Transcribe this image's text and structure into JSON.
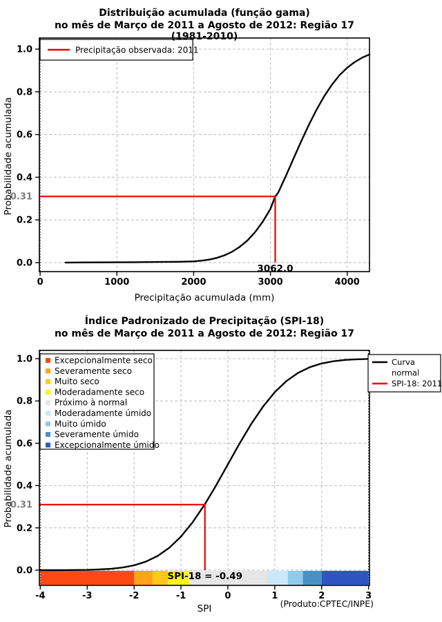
{
  "figure": {
    "background": "#FFFFFF",
    "footer": "(Produto:CPTEC/INPE)"
  },
  "chart_data": [
    {
      "type": "line",
      "title": "Distribuição acumulada (função gama)",
      "subtitle": "no mês de Março de 2011 a Agosto de 2012: Região 17 (1981-2010)",
      "xlabel": "Precipitação acumulada (mm)",
      "ylabel": "Probabilidade acumulada",
      "xlim": [
        0,
        4300
      ],
      "ylim": [
        0.0,
        1.0
      ],
      "grid": {
        "on": true,
        "color": "#C6C6C6"
      },
      "xticks": {
        "values": [
          0,
          1000,
          2000,
          3000,
          4000
        ],
        "labels": [
          "0",
          "1000",
          "2000",
          "3000",
          "4000"
        ]
      },
      "yticks": {
        "values": [
          0.0,
          0.2,
          0.4,
          0.6,
          0.8,
          1.0
        ],
        "labels": [
          "0.0",
          "0.2",
          "0.4",
          "0.6",
          "0.8",
          "1.0"
        ]
      },
      "special_ytick": {
        "value": 0.31,
        "label": "0.31",
        "color": "#7D7D7D"
      },
      "edge_gridlines_x": [
        0
      ],
      "legend": {
        "position": "top-left",
        "items": [
          {
            "label": "Precipitação observada: 2011",
            "color": "#EE0000",
            "marker": "line"
          }
        ]
      },
      "annotation": {
        "x": 3062,
        "y": 0.31,
        "label": "3062.0",
        "color": "#EE0000"
      },
      "series": [
        {
          "color": "#000000",
          "points": [
            [
              330,
              0.0005
            ],
            [
              600,
              0.001
            ],
            [
              900,
              0.0015
            ],
            [
              1200,
              0.002
            ],
            [
              1500,
              0.003
            ],
            [
              1800,
              0.004
            ],
            [
              2000,
              0.006
            ],
            [
              2100,
              0.009
            ],
            [
              2200,
              0.014
            ],
            [
              2300,
              0.022
            ],
            [
              2400,
              0.034
            ],
            [
              2500,
              0.051
            ],
            [
              2600,
              0.074
            ],
            [
              2700,
              0.104
            ],
            [
              2800,
              0.143
            ],
            [
              2900,
              0.192
            ],
            [
              3000,
              0.252
            ],
            [
              3062,
              0.31
            ],
            [
              3100,
              0.327
            ],
            [
              3200,
              0.405
            ],
            [
              3300,
              0.487
            ],
            [
              3400,
              0.568
            ],
            [
              3500,
              0.645
            ],
            [
              3600,
              0.716
            ],
            [
              3700,
              0.779
            ],
            [
              3800,
              0.833
            ],
            [
              3900,
              0.878
            ],
            [
              4000,
              0.913
            ],
            [
              4100,
              0.94
            ],
            [
              4200,
              0.961
            ],
            [
              4290,
              0.975
            ]
          ]
        }
      ]
    },
    {
      "type": "line",
      "title": "Índice Padronizado de Precipitação (SPI-18)",
      "subtitle": "no mês de Março de 2011 a Agosto de 2012: Região 17",
      "xlabel": "SPI",
      "ylabel": "Probabilidade acumulada",
      "xlim": [
        -4,
        3
      ],
      "ylim": [
        0.0,
        1.0
      ],
      "grid": {
        "on": true,
        "color": "#C6C6C6"
      },
      "xticks": {
        "values": [
          -4,
          -3,
          -2,
          -1,
          0,
          1,
          2,
          3
        ],
        "labels": [
          "-4",
          "-3",
          "-2",
          "-1",
          "0",
          "1",
          "2",
          "3"
        ]
      },
      "yticks": {
        "values": [
          0.0,
          0.2,
          0.4,
          0.6,
          0.8,
          1.0
        ],
        "labels": [
          "0.0",
          "0.2",
          "0.4",
          "0.6",
          "0.8",
          "1.0"
        ]
      },
      "special_ytick": {
        "value": 0.31,
        "label": "0.31",
        "color": "#7D7D7D"
      },
      "edge_gridlines_x": [
        -4,
        3
      ],
      "legend_categories": {
        "items": [
          {
            "label": "Excepcionalmente seco",
            "color": "#FB4A14"
          },
          {
            "label": "Severamente seco",
            "color": "#FFA318"
          },
          {
            "label": "Muito seco",
            "color": "#FFC813"
          },
          {
            "label": "Moderadamente seco",
            "color": "#FFF315"
          },
          {
            "label": "Próximo à normal",
            "color": "#E6E6E6"
          },
          {
            "label": "Moderadamente úmido",
            "color": "#C9E9F8"
          },
          {
            "label": "Muito úmido",
            "color": "#8FCBEE"
          },
          {
            "label": "Severamente úmido",
            "color": "#4791C8"
          },
          {
            "label": "Excepcionalmente úmido",
            "color": "#2D55C4"
          }
        ]
      },
      "legend_lines": {
        "items": [
          {
            "label_lines": [
              "Curva",
              "normal"
            ],
            "color": "#000000"
          },
          {
            "label_lines": [
              "SPI-18: 2011"
            ],
            "color": "#EE0000"
          }
        ]
      },
      "colorbar": {
        "segments": [
          {
            "from": -4.0,
            "to": -2.0,
            "color": "#FB4A14"
          },
          {
            "from": -2.0,
            "to": -1.6,
            "color": "#FFA318"
          },
          {
            "from": -1.6,
            "to": -1.28,
            "color": "#FFC813"
          },
          {
            "from": -1.28,
            "to": -0.84,
            "color": "#FFF315"
          },
          {
            "from": -0.84,
            "to": 0.84,
            "color": "#E6E6E6"
          },
          {
            "from": 0.84,
            "to": 1.28,
            "color": "#C9E9F8"
          },
          {
            "from": 1.28,
            "to": 1.6,
            "color": "#8FCBEE"
          },
          {
            "from": 1.6,
            "to": 2.0,
            "color": "#4791C8"
          },
          {
            "from": 2.0,
            "to": 3.0,
            "color": "#2D55C4"
          }
        ]
      },
      "annotation": {
        "x": -0.49,
        "y": 0.31,
        "label": "SPI-18 = -0.49",
        "color": "#EE0000"
      },
      "series": [
        {
          "name": "Curva normal",
          "color": "#000000",
          "points": [
            [
              -4,
              3e-05
            ],
            [
              -3.5,
              0.00023
            ],
            [
              -3,
              0.00135
            ],
            [
              -2.75,
              0.003
            ],
            [
              -2.5,
              0.0062
            ],
            [
              -2.25,
              0.0122
            ],
            [
              -2,
              0.0228
            ],
            [
              -1.75,
              0.0401
            ],
            [
              -1.5,
              0.0668
            ],
            [
              -1.25,
              0.1056
            ],
            [
              -1,
              0.1587
            ],
            [
              -0.75,
              0.2266
            ],
            [
              -0.49,
              0.3121
            ],
            [
              -0.25,
              0.4013
            ],
            [
              0,
              0.5
            ],
            [
              0.25,
              0.5987
            ],
            [
              0.5,
              0.6915
            ],
            [
              0.75,
              0.7734
            ],
            [
              1,
              0.8413
            ],
            [
              1.25,
              0.8944
            ],
            [
              1.5,
              0.9332
            ],
            [
              1.75,
              0.9599
            ],
            [
              2,
              0.9772
            ],
            [
              2.25,
              0.9878
            ],
            [
              2.5,
              0.9938
            ],
            [
              2.75,
              0.997
            ],
            [
              3,
              0.9987
            ]
          ]
        }
      ]
    }
  ]
}
